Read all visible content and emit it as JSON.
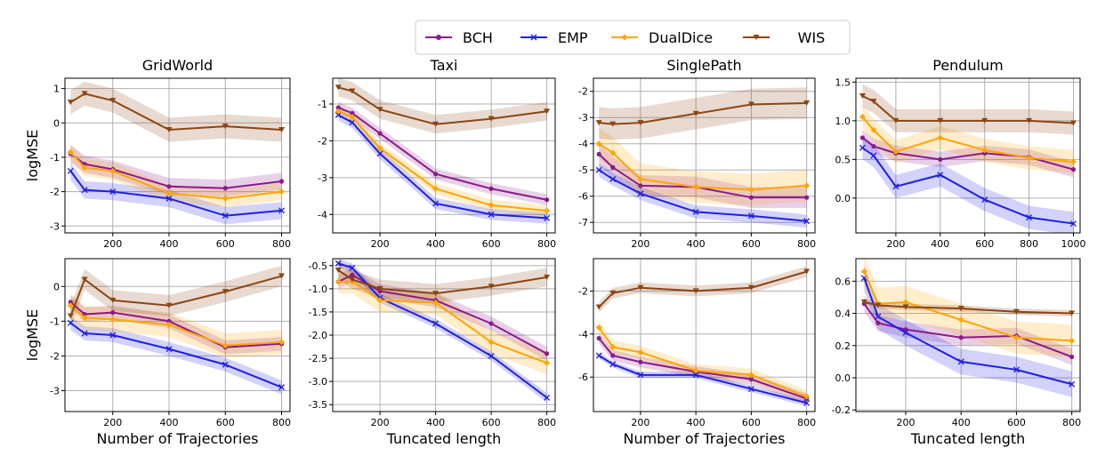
{
  "legend": {
    "entries": [
      {
        "name": "BCH",
        "color": "#8b1a8b",
        "marker": "circle"
      },
      {
        "name": "EMP",
        "color": "#1f1fe6",
        "marker": "x"
      },
      {
        "name": "DualDice",
        "color": "#ffa500",
        "marker": "diamond"
      },
      {
        "name": "WIS",
        "color": "#8b4513",
        "marker": "triangle-down"
      }
    ]
  },
  "chart_data": [
    {
      "type": "line",
      "title": "GridWorld",
      "ylabel": "logMSE",
      "xlabel": "",
      "xlim": [
        30,
        830
      ],
      "ylim": [
        -3.2,
        1.3
      ],
      "xticks": [
        200,
        400,
        600,
        800
      ],
      "yticks": [
        -3,
        -2,
        -1,
        0,
        1
      ],
      "x": [
        50,
        100,
        200,
        400,
        600,
        800
      ],
      "series": [
        {
          "name": "BCH",
          "values": [
            -0.9,
            -1.2,
            -1.35,
            -1.85,
            -1.9,
            -1.7
          ],
          "band": 0.25
        },
        {
          "name": "EMP",
          "values": [
            -1.4,
            -1.95,
            -2.0,
            -2.2,
            -2.7,
            -2.55
          ],
          "band": 0.25
        },
        {
          "name": "DualDice",
          "values": [
            -0.85,
            -1.3,
            -1.4,
            -2.05,
            -2.2,
            -2.0
          ],
          "band": 0.25
        },
        {
          "name": "WIS",
          "values": [
            0.6,
            0.85,
            0.65,
            -0.2,
            -0.1,
            -0.2
          ],
          "band": 0.35
        }
      ]
    },
    {
      "type": "line",
      "title": "Taxi",
      "ylabel": "",
      "xlabel": "",
      "xlim": [
        30,
        830
      ],
      "ylim": [
        -4.5,
        -0.3
      ],
      "xticks": [
        200,
        400,
        600,
        800
      ],
      "yticks": [
        -4,
        -3,
        -2,
        -1
      ],
      "x": [
        50,
        100,
        200,
        400,
        600,
        800
      ],
      "series": [
        {
          "name": "BCH",
          "values": [
            -1.1,
            -1.25,
            -1.8,
            -2.9,
            -3.3,
            -3.6
          ],
          "band": 0.15
        },
        {
          "name": "EMP",
          "values": [
            -1.3,
            -1.5,
            -2.35,
            -3.7,
            -4.0,
            -4.1
          ],
          "band": 0.15
        },
        {
          "name": "DualDice",
          "values": [
            -1.2,
            -1.35,
            -2.2,
            -3.3,
            -3.75,
            -3.9
          ],
          "band": 0.15
        },
        {
          "name": "WIS",
          "values": [
            -0.55,
            -0.65,
            -1.15,
            -1.55,
            -1.4,
            -1.2
          ],
          "band": 0.25
        }
      ]
    },
    {
      "type": "line",
      "title": "SinglePath",
      "ylabel": "",
      "xlabel": "",
      "xlim": [
        30,
        830
      ],
      "ylim": [
        -7.4,
        -1.5
      ],
      "xticks": [
        200,
        400,
        600,
        800
      ],
      "yticks": [
        -7,
        -6,
        -5,
        -4,
        -3,
        -2
      ],
      "x": [
        50,
        100,
        200,
        400,
        600,
        800
      ],
      "series": [
        {
          "name": "BCH",
          "values": [
            -4.4,
            -4.9,
            -5.6,
            -5.65,
            -6.05,
            -6.05
          ],
          "band": 0.4
        },
        {
          "name": "EMP",
          "values": [
            -5.0,
            -5.35,
            -5.9,
            -6.6,
            -6.75,
            -6.95
          ],
          "band": 0.25
        },
        {
          "name": "DualDice",
          "values": [
            -4.0,
            -4.35,
            -5.35,
            -5.65,
            -5.75,
            -5.6
          ],
          "band": 0.6
        },
        {
          "name": "WIS",
          "values": [
            -3.2,
            -3.25,
            -3.2,
            -2.85,
            -2.5,
            -2.45
          ],
          "band": 0.6
        }
      ]
    },
    {
      "type": "line",
      "title": "Pendulum",
      "ylabel": "",
      "xlabel": "",
      "xlim": [
        20,
        1030
      ],
      "ylim": [
        -0.45,
        1.55
      ],
      "xticks": [
        200,
        400,
        600,
        800,
        1000
      ],
      "yticks": [
        -0.5,
        0.0,
        0.5,
        1.0,
        1.5
      ],
      "x": [
        50,
        100,
        200,
        400,
        600,
        800,
        1000
      ],
      "series": [
        {
          "name": "BCH",
          "values": [
            0.78,
            0.67,
            0.58,
            0.5,
            0.58,
            0.53,
            0.37
          ],
          "band": 0.1
        },
        {
          "name": "EMP",
          "values": [
            0.65,
            0.55,
            0.15,
            0.3,
            -0.02,
            -0.25,
            -0.33
          ],
          "band": 0.15
        },
        {
          "name": "DualDice",
          "values": [
            1.05,
            0.88,
            0.6,
            0.78,
            0.62,
            0.52,
            0.47
          ],
          "band": 0.15
        },
        {
          "name": "WIS",
          "values": [
            1.32,
            1.25,
            1.0,
            1.0,
            1.0,
            1.0,
            0.97
          ],
          "band": 0.15
        }
      ]
    },
    {
      "type": "line",
      "title": "",
      "ylabel": "logMSE",
      "xlabel": "Number of Trajectories",
      "xlim": [
        30,
        830
      ],
      "ylim": [
        -3.6,
        0.8
      ],
      "xticks": [
        200,
        400,
        600,
        800
      ],
      "yticks": [
        -3,
        -2,
        -1,
        0
      ],
      "x": [
        50,
        100,
        200,
        400,
        600,
        800
      ],
      "series": [
        {
          "name": "BCH",
          "values": [
            -0.45,
            -0.8,
            -0.75,
            -1.0,
            -1.75,
            -1.65
          ],
          "band": 0.2
        },
        {
          "name": "EMP",
          "values": [
            -1.05,
            -1.35,
            -1.4,
            -1.8,
            -2.25,
            -2.9
          ],
          "band": 0.2
        },
        {
          "name": "DualDice",
          "values": [
            -0.55,
            -0.9,
            -0.95,
            -1.1,
            -1.7,
            -1.6
          ],
          "band": 0.35
        },
        {
          "name": "WIS",
          "values": [
            -0.85,
            0.2,
            -0.4,
            -0.55,
            -0.15,
            0.3
          ],
          "band": 0.3
        }
      ]
    },
    {
      "type": "line",
      "title": "",
      "ylabel": "",
      "xlabel": "Tuncated length",
      "xlim": [
        30,
        830
      ],
      "ylim": [
        -3.65,
        -0.35
      ],
      "xticks": [
        200,
        400,
        600,
        800
      ],
      "yticks": [
        -3.5,
        -3.0,
        -2.5,
        -2.0,
        -1.5,
        -1.0,
        -0.5
      ],
      "x": [
        50,
        100,
        200,
        400,
        600,
        800
      ],
      "series": [
        {
          "name": "BCH",
          "values": [
            -0.85,
            -0.7,
            -1.05,
            -1.25,
            -1.75,
            -2.4
          ],
          "band": 0.15
        },
        {
          "name": "EMP",
          "values": [
            -0.45,
            -0.55,
            -1.2,
            -1.75,
            -2.45,
            -3.35
          ],
          "band": 0.1
        },
        {
          "name": "DualDice",
          "values": [
            -0.85,
            -0.85,
            -1.25,
            -1.3,
            -2.15,
            -2.6
          ],
          "band": 0.25
        },
        {
          "name": "WIS",
          "values": [
            -0.6,
            -0.8,
            -1.0,
            -1.1,
            -0.95,
            -0.75
          ],
          "band": 0.2
        }
      ]
    },
    {
      "type": "line",
      "title": "",
      "ylabel": "",
      "xlabel": "Number of Trajectories",
      "xlim": [
        30,
        830
      ],
      "ylim": [
        -7.6,
        -0.5
      ],
      "xticks": [
        200,
        400,
        600,
        800
      ],
      "yticks": [
        -6,
        -4,
        -2
      ],
      "x": [
        50,
        100,
        200,
        400,
        600,
        800
      ],
      "series": [
        {
          "name": "BCH",
          "values": [
            -4.2,
            -5.0,
            -5.3,
            -5.75,
            -6.1,
            -7.0
          ],
          "band": 0.25
        },
        {
          "name": "EMP",
          "values": [
            -5.0,
            -5.4,
            -5.9,
            -5.9,
            -6.55,
            -7.2
          ],
          "band": 0.15
        },
        {
          "name": "DualDice",
          "values": [
            -3.7,
            -4.6,
            -4.85,
            -5.7,
            -5.9,
            -6.9
          ],
          "band": 0.3
        },
        {
          "name": "WIS",
          "values": [
            -2.75,
            -2.1,
            -1.85,
            -2.0,
            -1.85,
            -1.1
          ],
          "band": 0.25
        }
      ]
    },
    {
      "type": "line",
      "title": "",
      "ylabel": "",
      "xlabel": "Tuncated length",
      "xlim": [
        20,
        830
      ],
      "ylim": [
        -0.21,
        0.74
      ],
      "xticks": [
        200,
        400,
        600,
        800
      ],
      "yticks": [
        -0.2,
        0.0,
        0.2,
        0.4,
        0.6
      ],
      "x": [
        50,
        100,
        200,
        400,
        600,
        800
      ],
      "series": [
        {
          "name": "BCH",
          "values": [
            0.46,
            0.34,
            0.3,
            0.25,
            0.26,
            0.13
          ],
          "band": 0.05
        },
        {
          "name": "EMP",
          "values": [
            0.62,
            0.38,
            0.28,
            0.1,
            0.05,
            -0.04
          ],
          "band": 0.08
        },
        {
          "name": "DualDice",
          "values": [
            0.66,
            0.46,
            0.47,
            0.36,
            0.25,
            0.23
          ],
          "band": 0.1
        },
        {
          "name": "WIS",
          "values": [
            0.47,
            0.45,
            0.44,
            0.43,
            0.41,
            0.4
          ],
          "band": 0.02
        }
      ]
    }
  ]
}
